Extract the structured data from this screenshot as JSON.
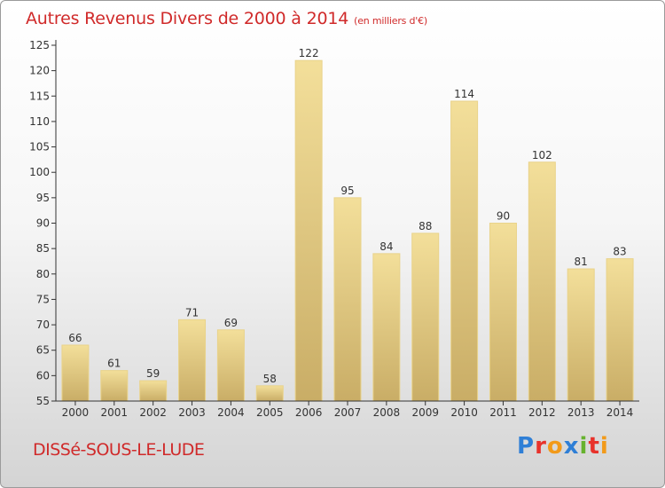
{
  "header": {
    "title": "Autres Revenus Divers de 2000 à 2014",
    "unit": "(en milliers d'€)"
  },
  "footer": {
    "commune": "DISSé-SOUS-LE-LUDE",
    "logo_letters": [
      "P",
      "r",
      "o",
      "x",
      "i",
      "t",
      "i"
    ]
  },
  "colors": {
    "title": "#d02a2a",
    "bar_light": "#f3df9a",
    "bar_dark": "#c9ad66",
    "bar_edge": "#e9d38a"
  },
  "chart_data": {
    "type": "bar",
    "title": "Autres Revenus Divers de 2000 à 2014",
    "subtitle": "(en milliers d'€)",
    "categories": [
      "2000",
      "2001",
      "2002",
      "2003",
      "2004",
      "2005",
      "2006",
      "2007",
      "2008",
      "2009",
      "2010",
      "2011",
      "2012",
      "2013",
      "2014"
    ],
    "values": [
      66,
      61,
      59,
      71,
      69,
      58,
      122,
      95,
      84,
      88,
      114,
      90,
      102,
      81,
      83
    ],
    "ylim": [
      55,
      125
    ],
    "yticks": [
      55,
      60,
      65,
      70,
      75,
      80,
      85,
      90,
      95,
      100,
      105,
      110,
      115,
      120,
      125
    ],
    "grid": false,
    "data_labels": true
  }
}
